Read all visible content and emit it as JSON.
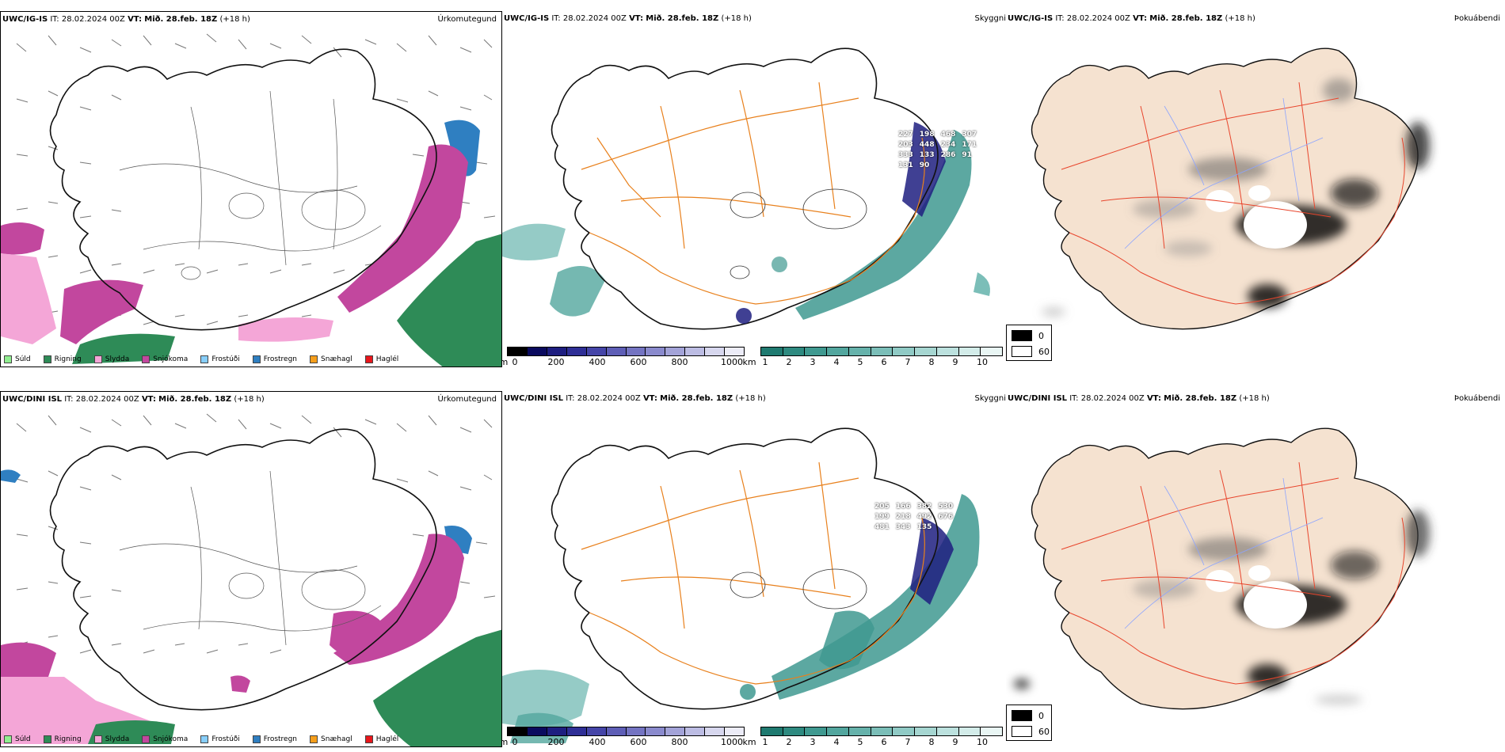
{
  "rows": [
    {
      "model": "UWC/IG-IS",
      "run_info": "IT: 28.02.2024 00Z",
      "vt_label": "VT:",
      "vt_value": "Mið. 28.feb. 18Z",
      "lead": "(+18 h)"
    },
    {
      "model": "UWC/DINI ISL",
      "run_info": "IT: 28.02.2024 00Z",
      "vt_label": "VT:",
      "vt_value": "Mið. 28.feb. 18Z",
      "lead": "(+18 h)"
    }
  ],
  "panel_titles": {
    "precip_type": "Úrkomutegund",
    "visibility": "Skyggni",
    "fog": "Þokuábendi"
  },
  "precip_legend": [
    {
      "label": "Súld",
      "color": "#90ee90"
    },
    {
      "label": "Rigning",
      "color": "#2e8b57"
    },
    {
      "label": "Slydda",
      "color": "#f4a6d7"
    },
    {
      "label": "Snjókoma",
      "color": "#c2479e"
    },
    {
      "label": "Frostúði",
      "color": "#87cefa"
    },
    {
      "label": "Frostregn",
      "color": "#2f7fc1"
    },
    {
      "label": "Snæhagl",
      "color": "#f59e1b"
    },
    {
      "label": "Haglél",
      "color": "#e8161b"
    }
  ],
  "visibility_legend_m": {
    "unit": "m",
    "ticks": [
      "0",
      "200",
      "400",
      "600",
      "800",
      "1000"
    ],
    "colors": [
      "#000000",
      "#0a0a5e",
      "#1e1e80",
      "#2f2f96",
      "#4545a8",
      "#5e5eb6",
      "#7474c2",
      "#8a8acd",
      "#a3a3d8",
      "#bcbce3",
      "#d7d7ee",
      "#ececf7"
    ]
  },
  "visibility_legend_km": {
    "unit": "km",
    "ticks": [
      "1",
      "2",
      "3",
      "4",
      "5",
      "6",
      "7",
      "8",
      "9",
      "10"
    ],
    "colors": [
      "#1f7a70",
      "#2e8a80",
      "#3f9990",
      "#52a69e",
      "#66b2ab",
      "#7bbeb8",
      "#90cac5",
      "#a6d6d1",
      "#bce1de",
      "#d3ece9",
      "#e9f6f4"
    ]
  },
  "fog_legend": {
    "black_label": "0",
    "white_label": "60"
  },
  "visibility_labels_row1": [
    "227",
    "198",
    "468",
    "307",
    "203",
    "448",
    "234",
    "171",
    "333",
    "133",
    "286",
    "91",
    "131",
    "90"
  ],
  "visibility_labels_row2": [
    "205",
    "166",
    "382",
    "530",
    "199",
    "218",
    "492",
    "676",
    "481",
    "343",
    "135"
  ],
  "colors": {
    "land_fill_fog": "#f5e2d0",
    "roads": "#e8801c",
    "rivers": "#8ca4ff",
    "coast": "#000000"
  }
}
